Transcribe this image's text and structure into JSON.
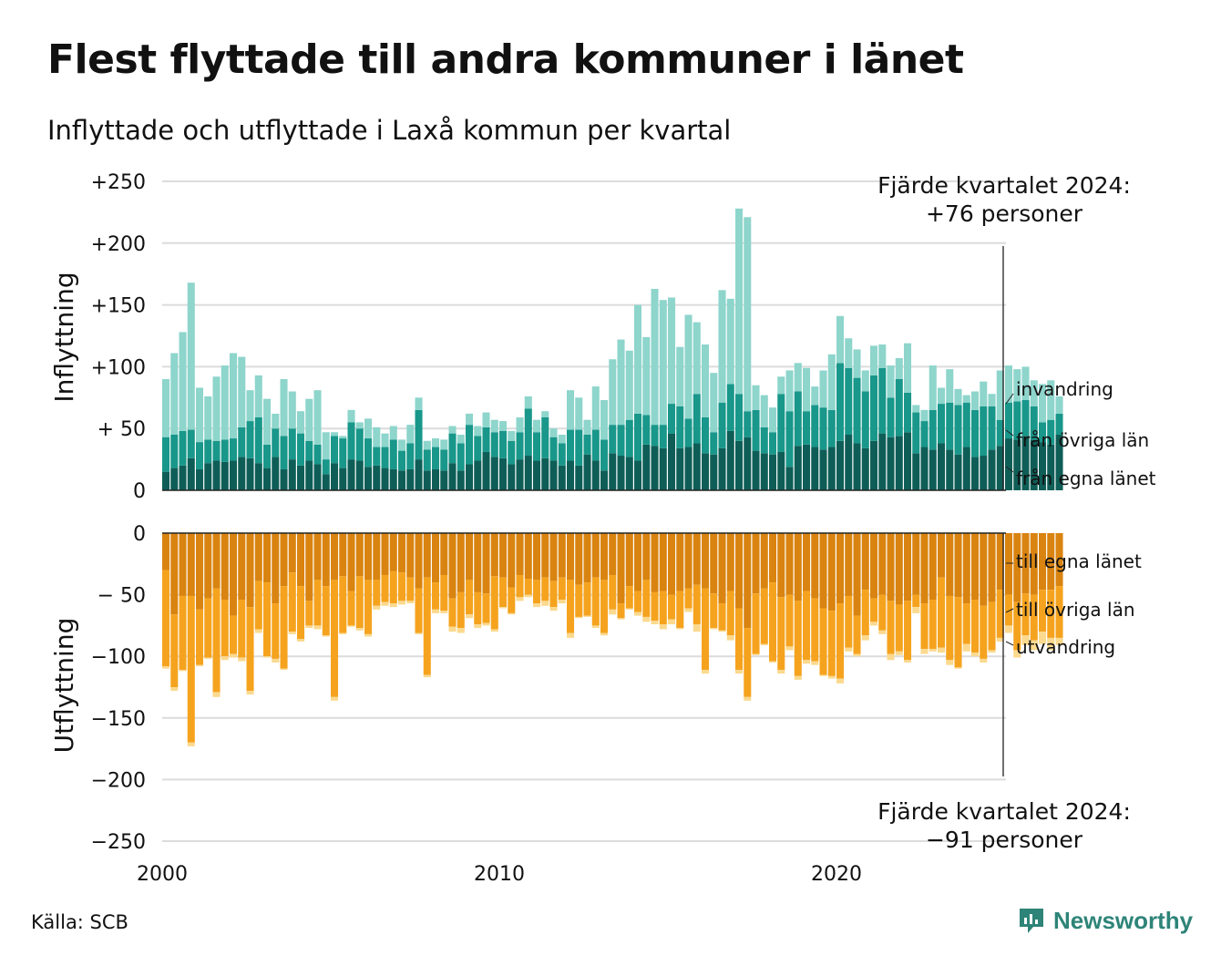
{
  "title": "Flest flyttade till andra kommuner i länet",
  "subtitle": "Inflyttade och utflyttade i Laxå kommun per kvartal",
  "source": "Källa: SCB",
  "brand": "Newsworthy",
  "colors": {
    "in_own": "#0e5e57",
    "in_other": "#18978a",
    "in_immigration": "#8ed5cc",
    "out_own": "#d98410",
    "out_other": "#f5a31e",
    "out_emigration": "#fbd98e",
    "grid": "#dcdcdc",
    "brand": "#2e8478"
  },
  "chart_data": {
    "type": "bar",
    "stacked": true,
    "x_start": 2000,
    "frequency": "quarterly",
    "x_ticks": [
      "2000",
      "2010",
      "2020"
    ],
    "panels": [
      {
        "ylabel": "Inflyttning",
        "ylim": [
          0,
          250
        ],
        "yticks": [
          "+250",
          "+200",
          "+150",
          "+100",
          "+ 50",
          "0"
        ],
        "annotation": [
          "Fjärde kvartalet 2024:",
          "+76 personer"
        ],
        "series": [
          {
            "name": "från egna länet",
            "values": [
              15,
              18,
              20,
              26,
              17,
              22,
              24,
              23,
              24,
              27,
              26,
              22,
              18,
              27,
              17,
              25,
              20,
              24,
              21,
              13,
              22,
              18,
              25,
              24,
              19,
              20,
              18,
              17,
              16,
              17,
              25,
              16,
              17,
              16,
              22,
              16,
              21,
              24,
              31,
              27,
              26,
              21,
              25,
              28,
              24,
              26,
              24,
              20,
              24,
              20,
              29,
              24,
              16,
              30,
              28,
              27,
              24,
              37,
              36,
              34,
              46,
              34,
              35,
              38,
              30,
              29,
              34,
              48,
              40,
              43,
              32,
              30,
              29,
              31,
              19,
              36,
              37,
              35,
              33,
              35,
              40,
              45,
              38,
              34,
              40,
              46,
              43,
              44,
              47,
              30,
              35,
              33,
              38,
              33,
              29,
              35,
              27,
              28,
              33,
              36,
              42,
              41,
              44,
              41,
              39,
              37,
              45
            ]
          },
          {
            "name": "från övriga län",
            "values": [
              28,
              27,
              28,
              23,
              22,
              19,
              16,
              18,
              18,
              24,
              30,
              37,
              19,
              23,
              27,
              25,
              26,
              16,
              16,
              12,
              22,
              24,
              30,
              26,
              23,
              15,
              17,
              24,
              16,
              21,
              40,
              17,
              18,
              17,
              24,
              22,
              32,
              20,
              20,
              20,
              22,
              19,
              22,
              38,
              23,
              33,
              19,
              18,
              25,
              29,
              16,
              25,
              25,
              23,
              25,
              30,
              38,
              24,
              17,
              19,
              24,
              34,
              23,
              40,
              29,
              18,
              37,
              38,
              38,
              21,
              33,
              21,
              18,
              47,
              45,
              44,
              27,
              34,
              34,
              30,
              63,
              54,
              53,
              46,
              53,
              53,
              32,
              46,
              32,
              33,
              21,
              32,
              32,
              38,
              40,
              36,
              38,
              40,
              35,
              21,
              29,
              31,
              29,
              27,
              16,
              20,
              17
            ]
          },
          {
            "name": "invandring",
            "values": [
              47,
              66,
              80,
              119,
              44,
              35,
              52,
              60,
              69,
              57,
              25,
              34,
              37,
              12,
              46,
              30,
              18,
              34,
              44,
              22,
              3,
              2,
              10,
              5,
              16,
              16,
              11,
              11,
              9,
              15,
              10,
              7,
              7,
              8,
              6,
              7,
              9,
              8,
              12,
              10,
              8,
              8,
              12,
              10,
              10,
              5,
              7,
              7,
              32,
              26,
              12,
              35,
              32,
              53,
              69,
              56,
              88,
              63,
              110,
              101,
              86,
              48,
              84,
              58,
              59,
              48,
              91,
              69,
              150,
              157,
              20,
              26,
              20,
              14,
              33,
              23,
              35,
              15,
              30,
              45,
              38,
              24,
              23,
              17,
              24,
              19,
              26,
              17,
              40,
              6,
              9,
              36,
              13,
              27,
              13,
              6,
              15,
              20,
              10,
              40,
              30,
              26,
              27,
              21,
              31,
              32,
              14
            ]
          }
        ]
      },
      {
        "ylabel": "Utflyttning",
        "ylim": [
          -250,
          0
        ],
        "yticks": [
          "0",
          "− 50",
          "−100",
          "−150",
          "−200",
          "−250"
        ],
        "annotation": [
          "Fjärde kvartalet 2024:",
          "−91 personer"
        ],
        "series": [
          {
            "name": "till egna länet",
            "values": [
              -30,
              -66,
              -51,
              -51,
              -62,
              -53,
              -45,
              -54,
              -67,
              -54,
              -60,
              -39,
              -40,
              -57,
              -43,
              -32,
              -43,
              -55,
              -38,
              -43,
              -38,
              -35,
              -47,
              -35,
              -38,
              -38,
              -34,
              -31,
              -32,
              -36,
              -45,
              -36,
              -40,
              -34,
              -53,
              -48,
              -38,
              -48,
              -49,
              -35,
              -36,
              -44,
              -34,
              -37,
              -38,
              -36,
              -39,
              -36,
              -38,
              -42,
              -40,
              -36,
              -38,
              -34,
              -57,
              -43,
              -47,
              -38,
              -48,
              -47,
              -50,
              -47,
              -45,
              -42,
              -45,
              -49,
              -57,
              -47,
              -61,
              -77,
              -49,
              -45,
              -40,
              -52,
              -50,
              -55,
              -47,
              -53,
              -61,
              -63,
              -57,
              -51,
              -67,
              -46,
              -53,
              -50,
              -55,
              -58,
              -55,
              -50,
              -57,
              -54,
              -36,
              -51,
              -52,
              -57,
              -54,
              -59,
              -56,
              -46,
              -50,
              -56,
              -49,
              -50,
              -46,
              -46,
              -43
            ]
          },
          {
            "name": "till övriga län",
            "values": [
              -78,
              -59,
              -60,
              -119,
              -45,
              -48,
              -84,
              -46,
              -31,
              -47,
              -68,
              -39,
              -60,
              -45,
              -67,
              -48,
              -43,
              -20,
              -37,
              -40,
              -95,
              -46,
              -28,
              -42,
              -44,
              -21,
              -22,
              -26,
              -23,
              -19,
              -36,
              -79,
              -22,
              -29,
              -23,
              -29,
              -28,
              -26,
              -24,
              -43,
              -24,
              -21,
              -18,
              -13,
              -19,
              -19,
              -21,
              -18,
              -43,
              -26,
              -27,
              -39,
              -43,
              -28,
              -12,
              -18,
              -17,
              -30,
              -23,
              -27,
              -20,
              -30,
              -16,
              -32,
              -66,
              -28,
              -22,
              -36,
              -50,
              -56,
              -49,
              -45,
              -64,
              -59,
              -42,
              -61,
              -56,
              -51,
              -54,
              -53,
              -61,
              -42,
              -31,
              -37,
              -19,
              -29,
              -43,
              -38,
              -48,
              -10,
              -37,
              -40,
              -57,
              -52,
              -57,
              -33,
              -43,
              -43,
              -39,
              -39,
              -25,
              -39,
              -34,
              -37,
              -34,
              -39,
              -42
            ]
          },
          {
            "name": "utvandring",
            "values": [
              -2,
              -3,
              -1,
              -3,
              -1,
              -1,
              -4,
              -3,
              -3,
              -3,
              -3,
              -3,
              -1,
              -3,
              -1,
              -2,
              -2,
              -2,
              -3,
              -1,
              -3,
              -1,
              -1,
              -2,
              -2,
              -3,
              -3,
              -3,
              -3,
              -2,
              -1,
              -2,
              -3,
              -2,
              -4,
              -4,
              -3,
              -3,
              -2,
              -2,
              -1,
              -1,
              -3,
              -2,
              -3,
              -4,
              -3,
              -3,
              -4,
              -1,
              -1,
              -2,
              -2,
              -4,
              -1,
              -1,
              -3,
              -4,
              -3,
              -4,
              -4,
              -1,
              -3,
              -6,
              -3,
              -1,
              -1,
              -4,
              -3,
              -3,
              -1,
              -1,
              -1,
              -3,
              -3,
              -3,
              -3,
              -3,
              -1,
              -2,
              -4,
              -3,
              -2,
              -4,
              -3,
              -3,
              -5,
              -3,
              -2,
              -5,
              -4,
              -2,
              -4,
              -4,
              -1,
              -6,
              -3,
              -3,
              -2,
              -3,
              -6,
              -6,
              -8,
              -8,
              -10,
              -10,
              -6
            ]
          }
        ]
      }
    ]
  }
}
